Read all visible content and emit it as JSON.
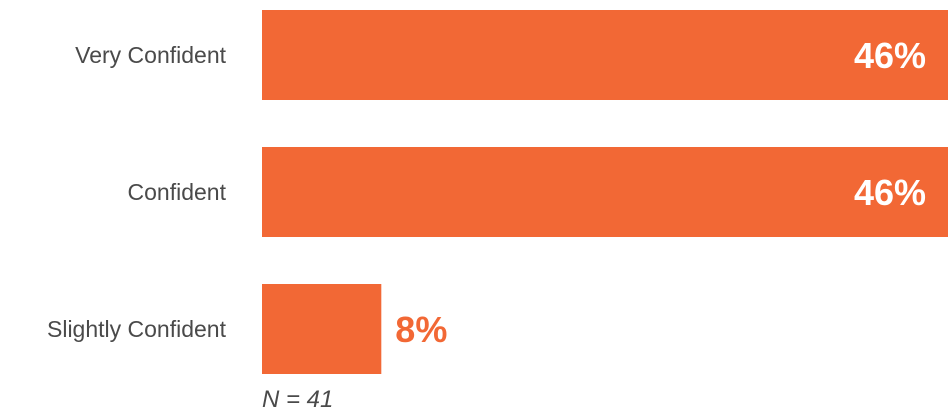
{
  "chart_data": {
    "type": "bar",
    "orientation": "horizontal",
    "categories": [
      "Very Confident",
      "Confident",
      "Slightly Confident"
    ],
    "values": [
      46,
      46,
      8
    ],
    "data_labels": [
      "46%",
      "46%",
      "8%"
    ],
    "xlim": [
      0,
      46
    ],
    "grid": false,
    "bar_color": "#F26835",
    "label_color_inside": "#ffffff",
    "label_color_outside": "#F26835"
  },
  "footnote": "N = 41"
}
